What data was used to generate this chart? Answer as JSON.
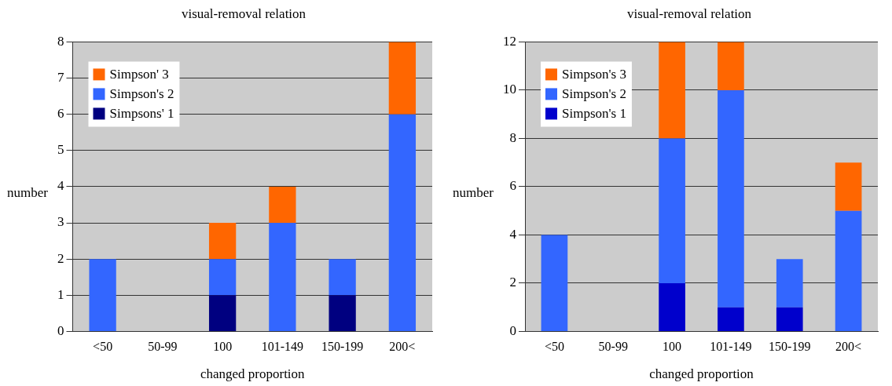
{
  "chart_data": [
    {
      "type": "bar",
      "title": "visual-removal relation",
      "xlabel": "changed proportion",
      "ylabel": "number",
      "categories": [
        "<50",
        "50-99",
        "100",
        "101-149",
        "150-199",
        "200<"
      ],
      "stacked": true,
      "ylim": [
        0,
        8
      ],
      "yticks": [
        0,
        1,
        2,
        3,
        4,
        5,
        6,
        7,
        8
      ],
      "grid": "y",
      "legend": "top left",
      "series": [
        {
          "name": "Simpsons' 1",
          "color": "#000080",
          "values": [
            0,
            0,
            1,
            0,
            1,
            0
          ]
        },
        {
          "name": "Simpson's 2",
          "color": "#3366ff",
          "values": [
            2,
            0,
            1,
            3,
            1,
            6
          ]
        },
        {
          "name": "Simpson' 3",
          "color": "#ff6600",
          "values": [
            0,
            0,
            1,
            1,
            0,
            2
          ]
        }
      ]
    },
    {
      "type": "bar",
      "title": "visual-removal relation",
      "xlabel": "changed proportion",
      "ylabel": "number",
      "categories": [
        "<50",
        "50-99",
        "100",
        "101-149",
        "150-199",
        "200<"
      ],
      "stacked": true,
      "ylim": [
        0,
        12
      ],
      "yticks": [
        0,
        2,
        4,
        6,
        8,
        10,
        12
      ],
      "grid": "y",
      "legend": "top left",
      "series": [
        {
          "name": "Simpson's 1",
          "color": "#0000cc",
          "values": [
            0,
            0,
            2,
            1,
            1,
            0
          ]
        },
        {
          "name": "Simpson's 2",
          "color": "#3366ff",
          "values": [
            4,
            0,
            6,
            9,
            2,
            5
          ]
        },
        {
          "name": "Simpson's 3",
          "color": "#ff6600",
          "values": [
            0,
            0,
            4,
            2,
            0,
            2
          ]
        }
      ]
    }
  ]
}
